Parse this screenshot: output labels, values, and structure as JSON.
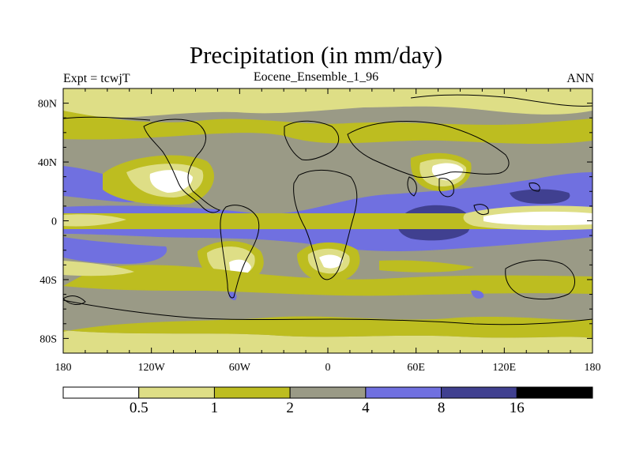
{
  "title": "Precipitation (in mm/day)",
  "left_label": "Expt = tcwjT",
  "center_label": "Eocene_Ensemble_1_96",
  "right_label": "ANN",
  "map": {
    "lon_range": [
      -180,
      180
    ],
    "lat_range": [
      -90,
      90
    ],
    "x_ticks": [
      {
        "lon": -180,
        "label": "180"
      },
      {
        "lon": -120,
        "label": "120W"
      },
      {
        "lon": -60,
        "label": "60W"
      },
      {
        "lon": 0,
        "label": "0"
      },
      {
        "lon": 60,
        "label": "60E"
      },
      {
        "lon": 120,
        "label": "120E"
      },
      {
        "lon": 180,
        "label": "180"
      }
    ],
    "y_ticks": [
      {
        "lat": 80,
        "label": "80N"
      },
      {
        "lat": 40,
        "label": "40N"
      },
      {
        "lat": 0,
        "label": "0"
      },
      {
        "lat": -40,
        "label": "40S"
      },
      {
        "lat": -80,
        "label": "80S"
      }
    ],
    "background_level": "gray"
  },
  "colorbar": {
    "labels": [
      "0.5",
      "1",
      "2",
      "4",
      "8",
      "16"
    ],
    "colors": [
      "#ffffff",
      "#dede86",
      "#bdbd20",
      "#9a9a86",
      "#7070e0",
      "#404090",
      "#000000"
    ]
  },
  "colors": {
    "white": "#ffffff",
    "light": "#dede86",
    "olive": "#bdbd20",
    "gray": "#9a9a86",
    "blue": "#7070e0",
    "navy": "#404090",
    "black": "#000000"
  }
}
